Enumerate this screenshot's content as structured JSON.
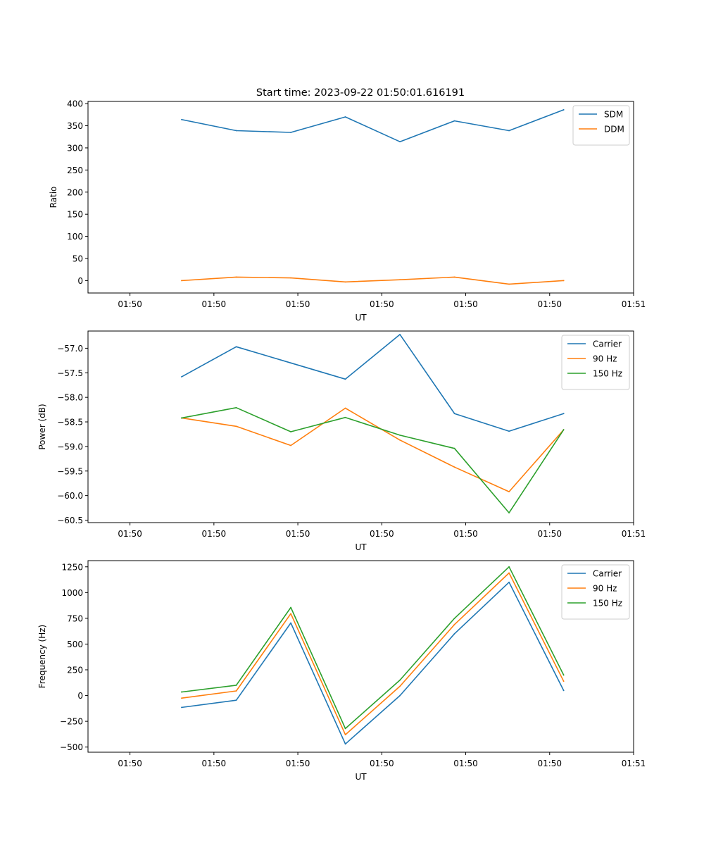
{
  "figure_title": "Start time: 2023-09-22 01:50:01.616191",
  "chart_data": [
    {
      "type": "line",
      "id": "ratio",
      "title": "Start time: 2023-09-22 01:50:01.616191",
      "xlabel": "UT",
      "ylabel": "Ratio",
      "ylim": [
        -28,
        405
      ],
      "yticks": [
        0,
        50,
        100,
        150,
        200,
        250,
        300,
        350,
        400
      ],
      "legend_position": "top-right",
      "series": [
        {
          "name": "SDM",
          "color": "#1f77b4",
          "values": [
            364,
            339,
            335,
            370,
            314,
            361,
            339,
            386
          ]
        },
        {
          "name": "DDM",
          "color": "#ff7f0e",
          "values": [
            0,
            8,
            6,
            -3,
            2,
            8,
            -8,
            0
          ]
        }
      ]
    },
    {
      "type": "line",
      "id": "power",
      "title": "",
      "xlabel": "UT",
      "ylabel": "Power (dB)",
      "ylim": [
        -60.55,
        -56.65
      ],
      "yticks": [
        -60.5,
        -60.0,
        -59.5,
        -59.0,
        -58.5,
        -58.0,
        -57.5,
        -57.0
      ],
      "ytick_labels": [
        "−60.5",
        "−60.0",
        "−59.5",
        "−59.0",
        "−58.5",
        "−58.0",
        "−57.5",
        "−57.0"
      ],
      "legend_position": "top-right",
      "series": [
        {
          "name": "Carrier",
          "color": "#1f77b4",
          "values": [
            -57.58,
            -56.97,
            -57.3,
            -57.63,
            -56.72,
            -58.33,
            -58.69,
            -58.33
          ]
        },
        {
          "name": "90 Hz",
          "color": "#ff7f0e",
          "values": [
            -58.42,
            -58.59,
            -58.98,
            -58.22,
            -58.87,
            -59.42,
            -59.92,
            -58.66
          ]
        },
        {
          "name": "150 Hz",
          "color": "#2ca02c",
          "values": [
            -58.42,
            -58.21,
            -58.7,
            -58.41,
            -58.77,
            -59.04,
            -60.35,
            -58.66
          ]
        }
      ]
    },
    {
      "type": "line",
      "id": "frequency",
      "title": "",
      "xlabel": "UT",
      "ylabel": "Frequency (Hz)",
      "ylim": [
        -550,
        1310
      ],
      "yticks": [
        -500,
        -250,
        0,
        250,
        500,
        750,
        1000,
        1250
      ],
      "ytick_labels": [
        "−500",
        "−250",
        "0",
        "250",
        "500",
        "750",
        "1000",
        "1250"
      ],
      "legend_position": "top-right",
      "series": [
        {
          "name": "Carrier",
          "color": "#1f77b4",
          "values": [
            -115,
            -45,
            705,
            -470,
            0,
            600,
            1100,
            50
          ]
        },
        {
          "name": "90 Hz",
          "color": "#ff7f0e",
          "values": [
            -25,
            45,
            795,
            -380,
            90,
            690,
            1190,
            140
          ]
        },
        {
          "name": "150 Hz",
          "color": "#2ca02c",
          "values": [
            35,
            100,
            855,
            -320,
            150,
            750,
            1250,
            200
          ]
        }
      ]
    }
  ],
  "x_axis": {
    "label": "UT",
    "tick_labels": [
      "01:50",
      "01:50",
      "01:50",
      "01:50",
      "01:50",
      "01:50",
      "01:51"
    ],
    "sample_times_s": [
      1.616,
      2.266,
      2.916,
      3.566,
      4.216,
      4.866,
      5.516,
      6.166
    ],
    "tick_times_s": [
      1.0,
      2.0,
      3.0,
      4.0,
      5.0,
      6.0,
      7.0
    ],
    "xlim_s": [
      0.5,
      7.0
    ]
  }
}
